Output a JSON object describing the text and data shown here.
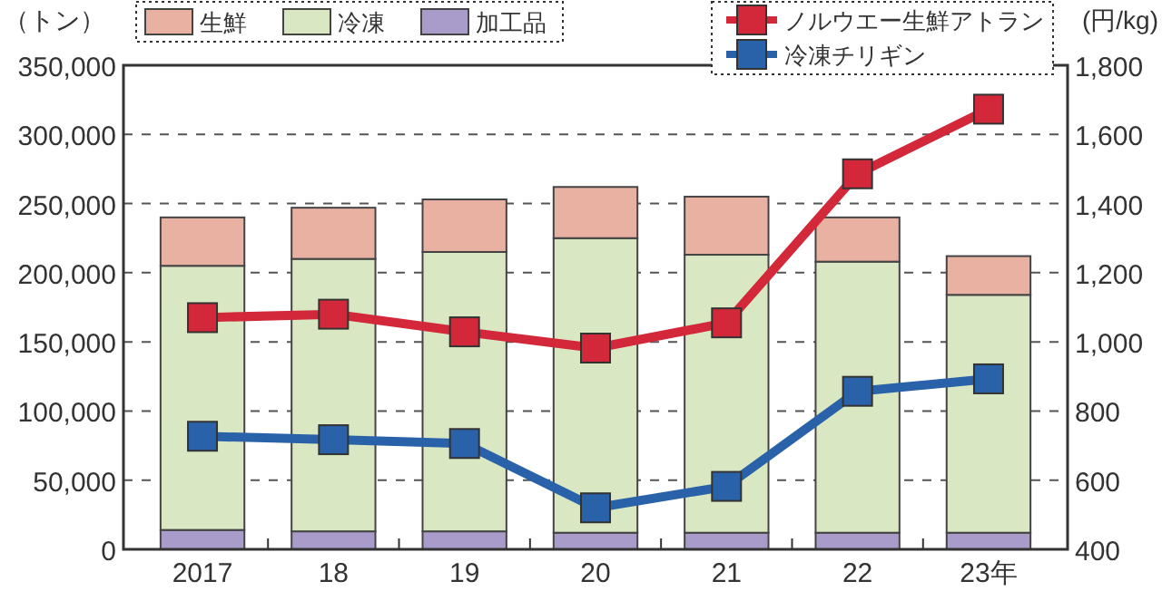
{
  "chart_data": {
    "type": "bar",
    "stacked": true,
    "ylabel": "（トン）",
    "y2label": "(円/kg)",
    "categories": [
      "2017",
      "18",
      "19",
      "20",
      "21",
      "22",
      "23年"
    ],
    "series": [
      {
        "name": "加工品",
        "color": "#a99bca",
        "values": [
          14000,
          13000,
          13000,
          12000,
          12000,
          12000,
          12000
        ]
      },
      {
        "name": "冷凍",
        "color": "#d9e7c2",
        "values": [
          191000,
          197000,
          202000,
          213000,
          201000,
          196000,
          172000
        ]
      },
      {
        "name": "生鮮",
        "color": "#e8b1a2",
        "values": [
          35000,
          37000,
          38000,
          37000,
          42000,
          32000,
          28000
        ]
      },
      {
        "name": "ノルウエー生鮮アトラン",
        "type": "line",
        "axis": "y2",
        "color": "#d2283a",
        "values": [
          1070,
          1080,
          1029,
          982,
          1055,
          1486,
          1673
        ]
      },
      {
        "name": "冷凍チリギン",
        "type": "line",
        "axis": "y2",
        "color": "#2a62aa",
        "values": [
          727,
          717,
          706,
          520,
          582,
          857,
          893
        ]
      }
    ],
    "ylim": [
      0,
      350000
    ],
    "yticks": [
      {
        "value": 0,
        "label": "0"
      },
      {
        "value": 50000,
        "label": "50,000"
      },
      {
        "value": 100000,
        "label": "100,000"
      },
      {
        "value": 150000,
        "label": "150,000"
      },
      {
        "value": 200000,
        "label": "200,000"
      },
      {
        "value": 250000,
        "label": "250,000"
      },
      {
        "value": 300000,
        "label": "300,000"
      },
      {
        "value": 350000,
        "label": "350,000"
      }
    ],
    "y2lim": [
      400,
      1800
    ],
    "y2ticks": [
      400,
      600,
      800,
      {
        "value": 1000,
        "label": "1,000"
      },
      {
        "value": 1200,
        "label": "1,200"
      },
      {
        "value": 1400,
        "label": "1,400"
      },
      {
        "value": 1600,
        "label": "1,600"
      },
      {
        "value": 1800,
        "label": "1,800"
      }
    ],
    "grid": "y",
    "legend": "top",
    "marker": "square"
  }
}
